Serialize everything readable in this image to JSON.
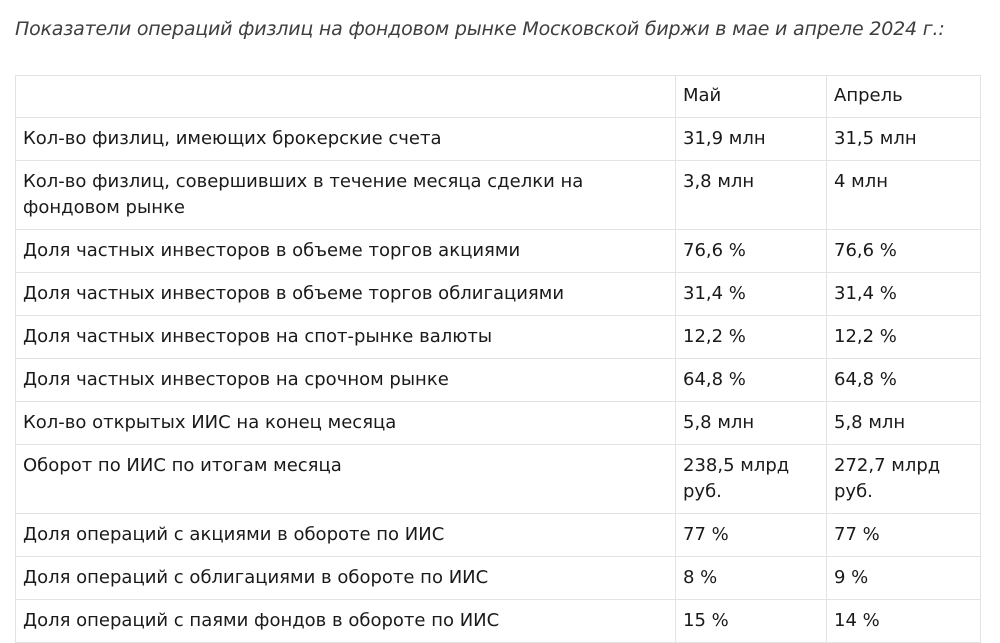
{
  "caption": "Показатели операций физлиц на фондовом рынке Московской биржи в мае и апреле 2024 г.:",
  "table": {
    "headers": [
      "",
      "Май",
      "Апрель"
    ],
    "rows": [
      [
        "Кол-во физлиц, имеющих брокерские счета",
        "31,9 млн",
        "31,5 млн"
      ],
      [
        "Кол-во физлиц, совершивших в течение месяца сделки на фондовом рынке",
        "3,8 млн",
        "4 млн"
      ],
      [
        "Доля частных инвесторов в объеме торгов акциями",
        "76,6 %",
        "76,6 %"
      ],
      [
        "Доля частных инвесторов в объеме торгов облигациями",
        "31,4 %",
        "31,4 %"
      ],
      [
        "Доля частных инвесторов на спот-рынке валюты",
        "12,2 %",
        "12,2 %"
      ],
      [
        "Доля частных инвесторов на срочном рынке",
        "64,8 %",
        "64,8 %"
      ],
      [
        "Кол-во открытых ИИС на конец месяца",
        "5,8 млн",
        "5,8 млн"
      ],
      [
        "Оборот по ИИС по итогам месяца",
        "238,5 млрд руб.",
        "272,7 млрд руб."
      ],
      [
        "Доля операций с акциями в обороте по ИИС",
        "77 %",
        "77 %"
      ],
      [
        "Доля операций с облигациями в обороте по ИИС",
        "8 %",
        "9 %"
      ],
      [
        "Доля операций с паями фондов в обороте по ИИС",
        "15 %",
        "14 %"
      ]
    ]
  }
}
